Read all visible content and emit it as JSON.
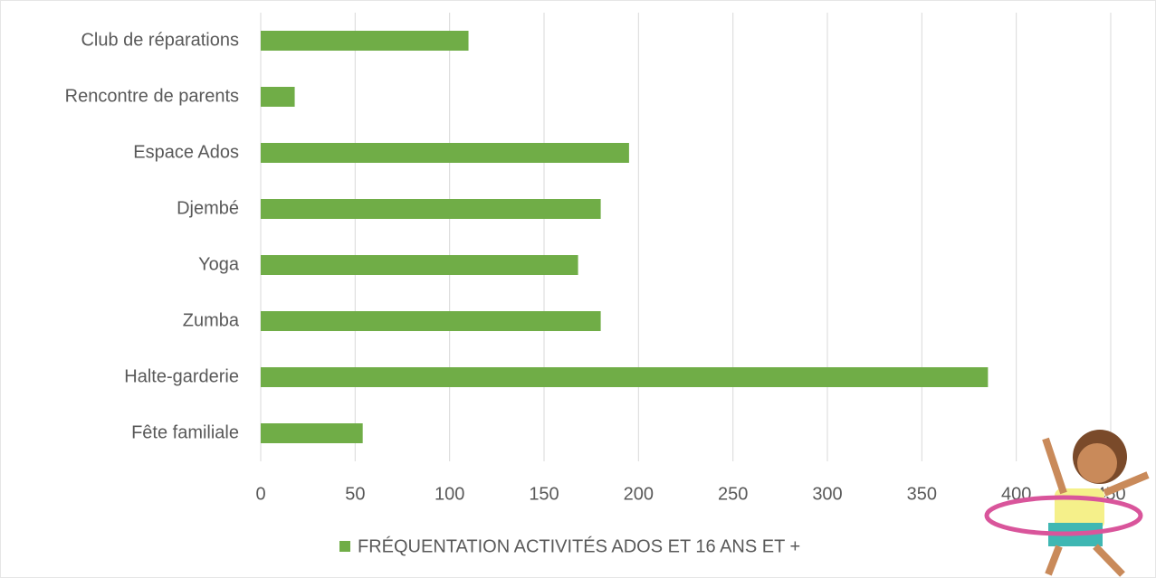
{
  "chart_data": {
    "type": "bar",
    "orientation": "horizontal",
    "categories": [
      "Club de réparations",
      "Rencontre de parents",
      "Espace Ados",
      "Djembé",
      "Yoga",
      "Zumba",
      "Halte-garderie",
      "Fête familiale"
    ],
    "series": [
      {
        "name": "FRÉQUENTATION ACTIVITÉS ADOS ET 16 ANS ET +",
        "color": "#70ad47",
        "values": [
          110,
          18,
          195,
          180,
          168,
          180,
          385,
          54
        ]
      }
    ],
    "xlim": [
      0,
      450
    ],
    "xticks": [
      0,
      50,
      100,
      150,
      200,
      250,
      300,
      350,
      400,
      450
    ],
    "grid": true,
    "legend": "bottom"
  }
}
